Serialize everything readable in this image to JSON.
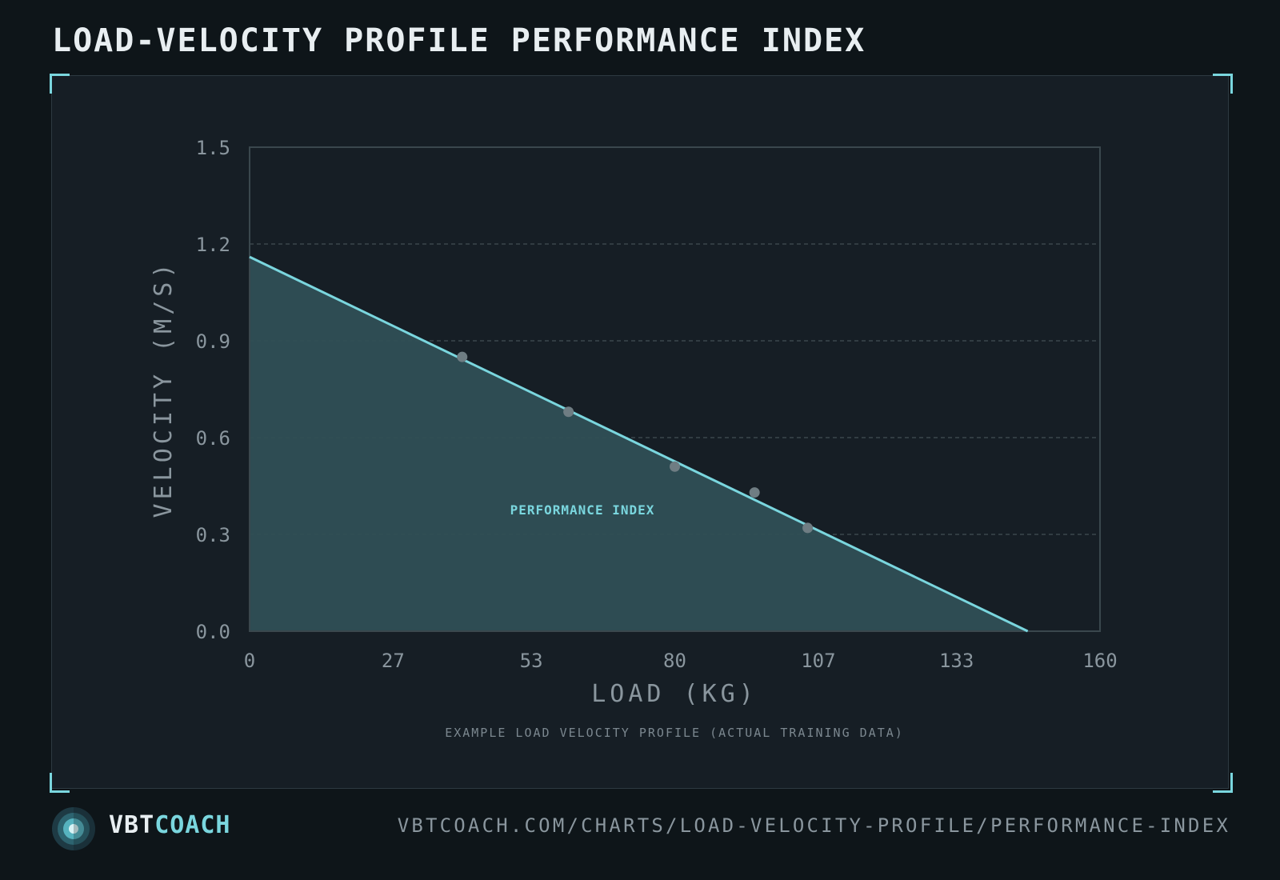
{
  "title": "LOAD-VELOCITY PROFILE PERFORMANCE INDEX",
  "chart_data": {
    "type": "line",
    "xlabel": "LOAD (KG)",
    "ylabel": "VELOCITY (M/S)",
    "xlim": [
      0,
      160
    ],
    "ylim": [
      0,
      1.5
    ],
    "x_ticks": [
      "0",
      "27",
      "53",
      "80",
      "107",
      "133",
      "160"
    ],
    "y_ticks": [
      "0.0",
      "0.3",
      "0.6",
      "0.9",
      "1.2",
      "1.5"
    ],
    "grid": "horizontal dashed",
    "regression_line": {
      "x": [
        0,
        146.4
      ],
      "y": [
        1.16,
        0
      ]
    },
    "points": [
      {
        "x": 40,
        "y": 0.85
      },
      {
        "x": 60,
        "y": 0.68
      },
      {
        "x": 80,
        "y": 0.51
      },
      {
        "x": 95,
        "y": 0.43
      },
      {
        "x": 105,
        "y": 0.32
      }
    ],
    "area_label": "PERFORMANCE INDEX",
    "caption": "EXAMPLE LOAD VELOCITY PROFILE (ACTUAL TRAINING DATA)",
    "colors": {
      "line": "#7ad6de",
      "fill": "#2f4f55",
      "point": "#6f7d83"
    }
  },
  "footer": {
    "brand_part1": "VBT",
    "brand_part2": "COACH",
    "url": "VBTCOACH.COM/CHARTS/LOAD-VELOCITY-PROFILE/PERFORMANCE-INDEX"
  }
}
